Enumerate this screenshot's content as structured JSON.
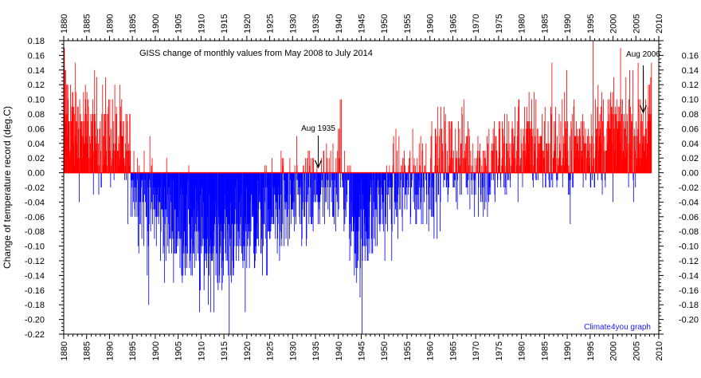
{
  "chart_data": {
    "type": "bar",
    "title": "GISS change of monthly values from May 2008 to July 2014",
    "ylabel": "Change of temperature record (deg.C)",
    "xlabel": "",
    "credit": "Climate4you graph",
    "xlim": [
      1880,
      2010
    ],
    "ylim": [
      -0.22,
      0.18
    ],
    "x_ticks": [
      1880,
      1885,
      1890,
      1895,
      1900,
      1905,
      1910,
      1915,
      1920,
      1925,
      1930,
      1935,
      1940,
      1945,
      1950,
      1955,
      1960,
      1965,
      1970,
      1975,
      1980,
      1985,
      1990,
      1995,
      2000,
      2005,
      2010
    ],
    "y_ticks_left": [
      -0.22,
      -0.2,
      -0.18,
      -0.16,
      -0.14,
      -0.12,
      -0.1,
      -0.08,
      -0.06,
      -0.04,
      -0.02,
      0.0,
      0.02,
      0.04,
      0.06,
      0.08,
      0.1,
      0.12,
      0.14,
      0.16,
      0.18
    ],
    "y_ticks_right": [
      -0.2,
      -0.18,
      -0.16,
      -0.14,
      -0.12,
      -0.1,
      -0.08,
      -0.06,
      -0.04,
      -0.02,
      0.0,
      0.02,
      0.04,
      0.06,
      0.08,
      0.1,
      0.12,
      0.14,
      0.16
    ],
    "positive_color": "#ff0000",
    "negative_color": "#0000ff",
    "annotations": [
      {
        "text": "Aug 1935",
        "x": 1935.6,
        "y": 0.005
      },
      {
        "text": "Aug 2006",
        "x": 2006.6,
        "y": 0.08
      }
    ],
    "series_anchor_years": [
      1880,
      1882,
      1884,
      1886,
      1888,
      1890,
      1892,
      1894,
      1896,
      1898,
      1900,
      1902,
      1904,
      1906,
      1908,
      1910,
      1912,
      1914,
      1916,
      1918,
      1920,
      1922,
      1924,
      1926,
      1928,
      1930,
      1932,
      1934,
      1936,
      1938,
      1940,
      1942,
      1944,
      1946,
      1948,
      1950,
      1952,
      1954,
      1956,
      1958,
      1960,
      1962,
      1964,
      1966,
      1968,
      1970,
      1972,
      1974,
      1976,
      1978,
      1980,
      1982,
      1984,
      1986,
      1988,
      1990,
      1992,
      1994,
      1996,
      1998,
      2000,
      2002,
      2004,
      2006,
      2008
    ],
    "series_anchor_values": [
      0.1,
      0.07,
      0.06,
      0.05,
      0.05,
      0.05,
      0.04,
      0.02,
      -0.02,
      -0.04,
      -0.05,
      -0.06,
      -0.07,
      -0.08,
      -0.09,
      -0.1,
      -0.1,
      -0.1,
      -0.09,
      -0.09,
      -0.08,
      -0.07,
      -0.07,
      -0.06,
      -0.05,
      -0.05,
      -0.04,
      -0.04,
      -0.03,
      -0.03,
      0.01,
      -0.04,
      -0.09,
      -0.07,
      -0.05,
      -0.04,
      -0.03,
      -0.02,
      -0.02,
      -0.01,
      0.0,
      0.01,
      0.02,
      0.02,
      0.02,
      0.01,
      0.0,
      0.01,
      0.02,
      0.03,
      0.04,
      0.04,
      0.04,
      0.03,
      0.03,
      0.04,
      0.04,
      0.04,
      0.05,
      0.05,
      0.06,
      0.06,
      0.05,
      0.06,
      0.07
    ],
    "series_noise": 0.038,
    "series_monthly_range": [
      "1880-01",
      "2008-05"
    ],
    "extremes": [
      {
        "year": 1916.1,
        "value": -0.22
      },
      {
        "year": 1945.1,
        "value": -0.22
      },
      {
        "year": 1995.6,
        "value": 0.18
      },
      {
        "year": 1880.1,
        "value": 0.17
      },
      {
        "year": 1940.6,
        "value": 0.1
      },
      {
        "year": 1898.5,
        "value": -0.18
      },
      {
        "year": 1909.6,
        "value": -0.19
      },
      {
        "year": 1919.6,
        "value": -0.19
      },
      {
        "year": 1986.6,
        "value": 0.15
      },
      {
        "year": 2003.6,
        "value": 0.14
      },
      {
        "year": 2006.6,
        "value": 0.14
      },
      {
        "year": 1990.6,
        "value": -0.07
      }
    ]
  }
}
